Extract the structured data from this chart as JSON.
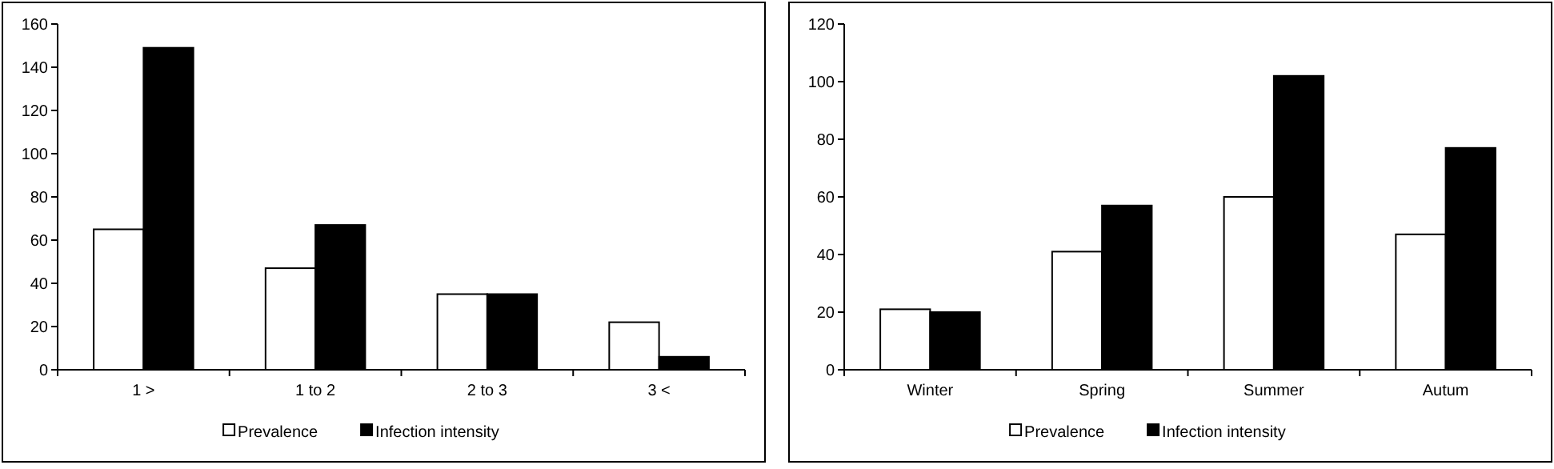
{
  "chart_data": [
    {
      "type": "bar",
      "categories": [
        "1 >",
        "1 to 2",
        "2 to 3",
        "3 <"
      ],
      "series": [
        {
          "name": "Prevalence",
          "color": "#ffffff",
          "values": [
            65,
            47,
            35,
            22
          ]
        },
        {
          "name": "Infection intensity",
          "color": "#000000",
          "values": [
            149,
            67,
            35,
            6
          ]
        }
      ],
      "ylim": [
        0,
        160
      ],
      "yticks": [
        0,
        20,
        40,
        60,
        80,
        100,
        120,
        140,
        160
      ],
      "legend": "bottom",
      "grid": false
    },
    {
      "type": "bar",
      "categories": [
        "Winter",
        "Spring",
        "Summer",
        "Autum"
      ],
      "series": [
        {
          "name": "Prevalence",
          "color": "#ffffff",
          "values": [
            21,
            41,
            60,
            47
          ]
        },
        {
          "name": "Infection intensity",
          "color": "#000000",
          "values": [
            20,
            57,
            102,
            77
          ]
        }
      ],
      "ylim": [
        0,
        120
      ],
      "yticks": [
        0,
        20,
        40,
        60,
        80,
        100,
        120
      ],
      "legend": "bottom",
      "grid": false
    }
  ]
}
